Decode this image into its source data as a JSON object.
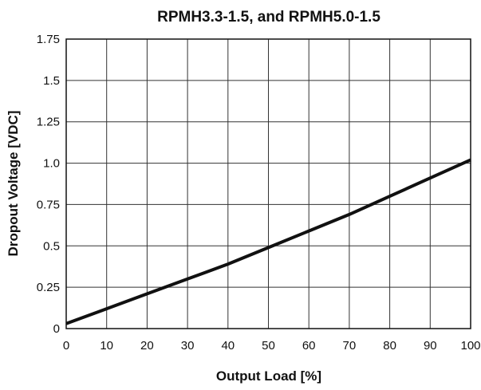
{
  "chart_data": {
    "type": "line",
    "title": "RPMH3.3-1.5, and RPMH5.0-1.5",
    "xlabel": "Output Load [%]",
    "ylabel": "Dropout Voltage [VDC]",
    "xlim": [
      0,
      100
    ],
    "ylim": [
      0,
      1.75
    ],
    "xticks": [
      0,
      10,
      20,
      30,
      40,
      50,
      60,
      70,
      80,
      90,
      100
    ],
    "xtick_labels": [
      "0",
      "10",
      "20",
      "30",
      "40",
      "50",
      "60",
      "70",
      "80",
      "90",
      "100"
    ],
    "yticks": [
      0,
      0.25,
      0.5,
      0.75,
      1.0,
      1.25,
      1.5,
      1.75
    ],
    "ytick_labels": [
      "0",
      "0.25",
      "0.5",
      "0.75",
      "1.0",
      "1.25",
      "1.5",
      "1.75"
    ],
    "grid": true,
    "series": [
      {
        "x": [
          0,
          10,
          20,
          30,
          40,
          50,
          60,
          70,
          80,
          90,
          100
        ],
        "y": [
          0.03,
          0.12,
          0.21,
          0.3,
          0.39,
          0.49,
          0.59,
          0.69,
          0.8,
          0.91,
          1.02
        ],
        "color": "#111111"
      }
    ]
  }
}
